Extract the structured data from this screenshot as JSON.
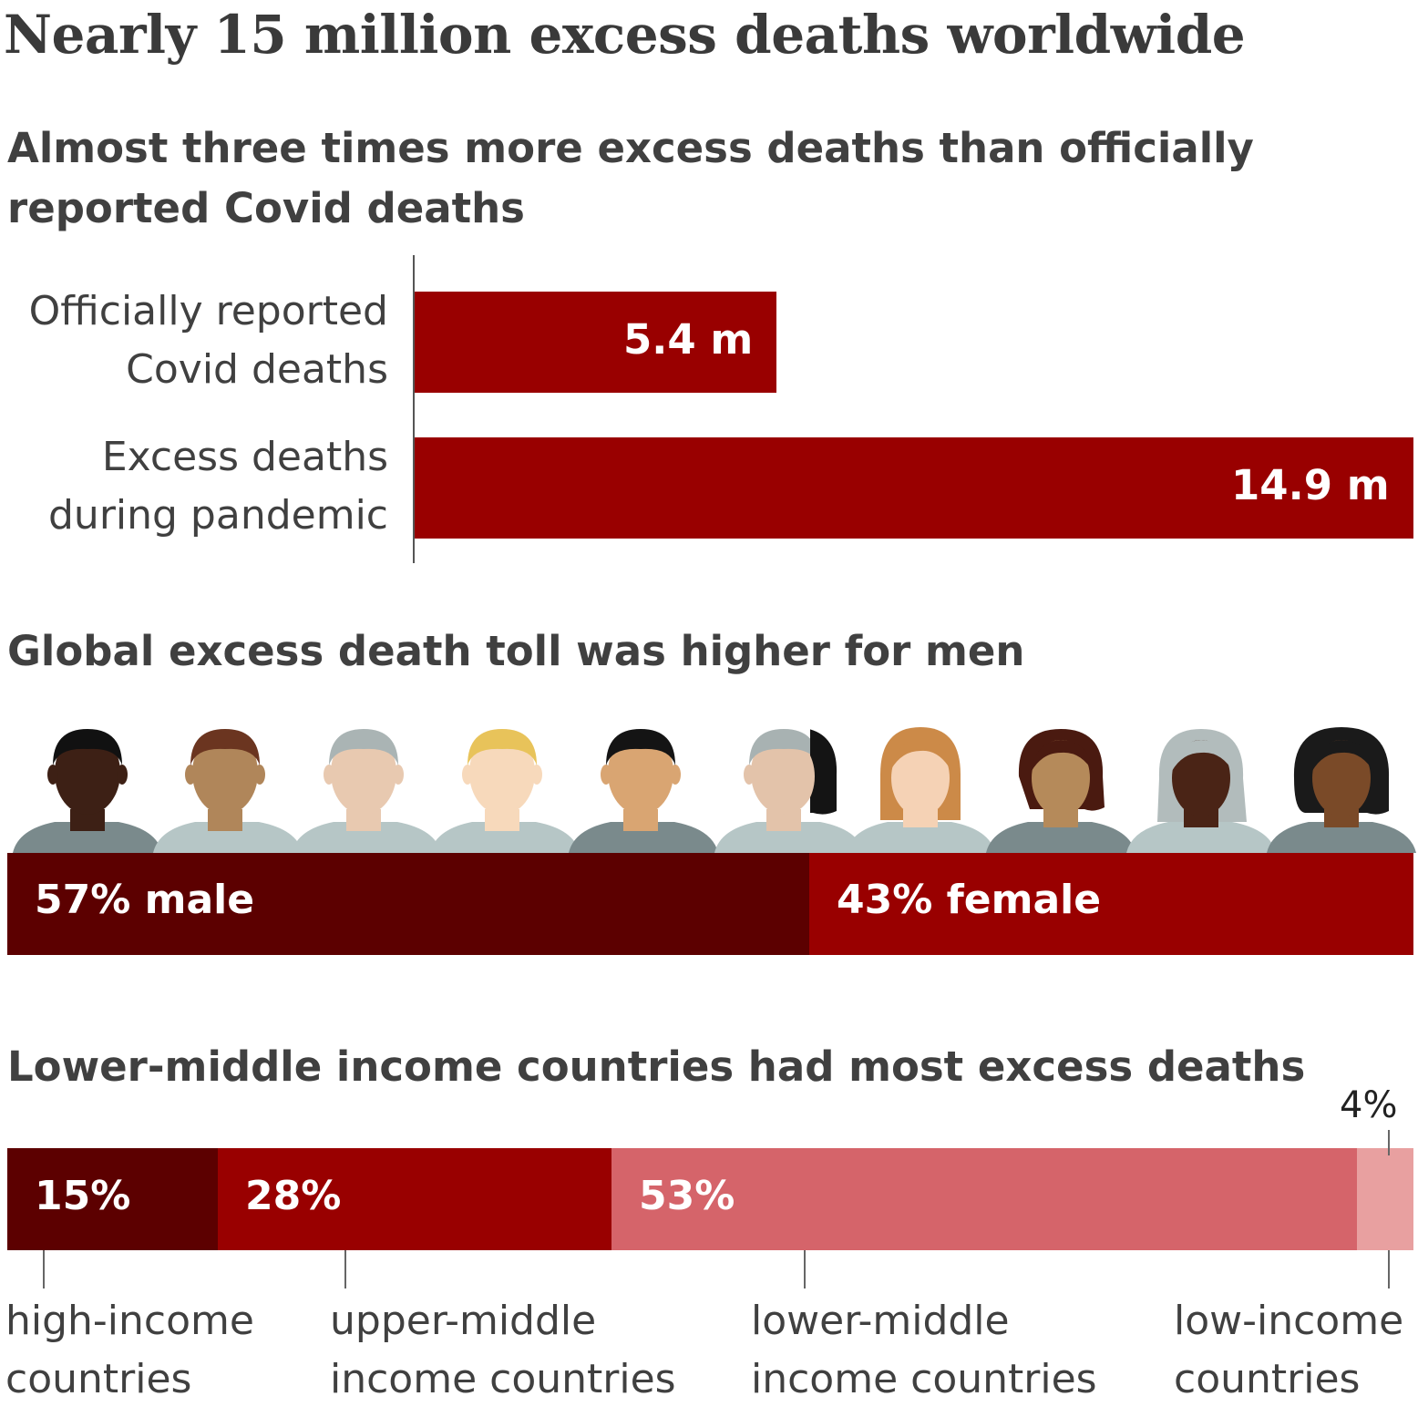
{
  "title": "Nearly 15 million excess deaths worldwide",
  "colors": {
    "dark_red": "#5c0000",
    "red": "#990000",
    "pink": "#d5646a",
    "light_pink": "#e8a0a0"
  },
  "chart_data": [
    {
      "type": "bar",
      "orientation": "horizontal",
      "title": "Almost three times more excess deaths than officially reported Covid deaths",
      "categories": [
        "Officially reported Covid deaths",
        "Excess deaths during pandemic"
      ],
      "category_lines": [
        [
          "Officially reported",
          "Covid deaths"
        ],
        [
          "Excess deaths",
          "during pandemic"
        ]
      ],
      "values": [
        5.4,
        14.9
      ],
      "value_labels": [
        "5.4 m",
        "14.9 m"
      ],
      "xlim": [
        0,
        14.9
      ]
    },
    {
      "type": "bar",
      "stacked": true,
      "title": "Global excess death toll was higher for men",
      "segments": [
        {
          "label": "57% male",
          "value": 57,
          "color": "#5c0000"
        },
        {
          "label": "43% female",
          "value": 43,
          "color": "#990000"
        }
      ],
      "icons": [
        "man-icon",
        "man-icon",
        "man-icon",
        "man-icon",
        "man-icon",
        "man-woman-split-icon",
        "woman-icon",
        "woman-icon",
        "woman-icon",
        "woman-icon"
      ]
    },
    {
      "type": "bar",
      "stacked": true,
      "title": "Lower-middle income countries had most excess deaths",
      "segments": [
        {
          "name": "high-income countries",
          "lines": [
            "high-income",
            "countries"
          ],
          "value": 15,
          "label": "15%",
          "color": "#5c0000"
        },
        {
          "name": "upper-middle income countries",
          "lines": [
            "upper-middle",
            "income countries"
          ],
          "value": 28,
          "label": "28%",
          "color": "#990000"
        },
        {
          "name": "lower-middle income countries",
          "lines": [
            "lower-middle",
            "income countries"
          ],
          "value": 53,
          "label": "53%",
          "color": "#d5646a"
        },
        {
          "name": "low-income countries",
          "lines": [
            "low-income",
            "countries"
          ],
          "value": 4,
          "label": "4%",
          "color": "#e8a0a0"
        }
      ]
    }
  ]
}
